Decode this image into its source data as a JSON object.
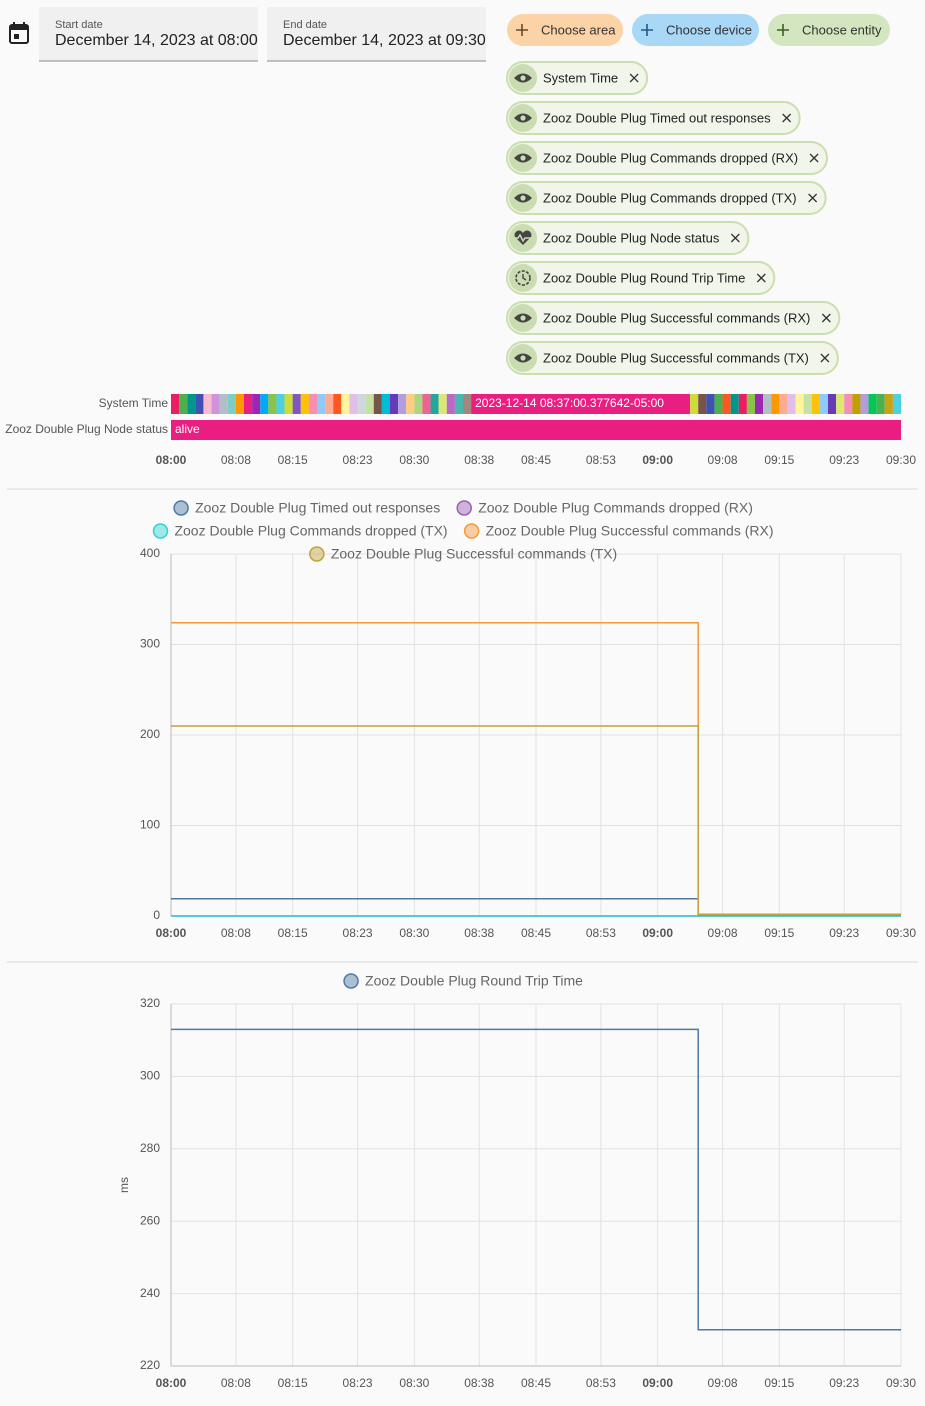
{
  "date_range": {
    "start": {
      "label": "Start date",
      "value": "December 14, 2023 at 08:00"
    },
    "end": {
      "label": "End date",
      "value": "December 14, 2023 at 09:30"
    }
  },
  "target_buttons": [
    "Choose area",
    "Choose device",
    "Choose entity"
  ],
  "entities": [
    "System Time",
    "Zooz Double Plug Timed out responses",
    "Zooz Double Plug Commands dropped (RX)",
    "Zooz Double Plug Commands dropped (TX)",
    "Zooz Double Plug Node status",
    "Zooz Double Plug Round Trip Time",
    "Zooz Double Plug Successful commands (RX)",
    "Zooz Double Plug Successful commands (TX)"
  ],
  "timeline": {
    "xlim": [
      "08:00",
      "09:30"
    ],
    "xticks": [
      "08:00",
      "08:08",
      "08:15",
      "08:23",
      "08:30",
      "08:38",
      "08:45",
      "08:53",
      "09:00",
      "09:08",
      "09:15",
      "09:23",
      "09:30"
    ],
    "rows": [
      {
        "name": "System Time",
        "segments": [
          {
            "start": "08:00",
            "end": "08:37",
            "colors": [
              "#e91e63",
              "#4caf50",
              "#009688",
              "#3f51b5",
              "#f8bbd0",
              "#ce93d8",
              "#b0bec5",
              "#80cbc4",
              "#ff9800",
              "#e91e80",
              "#9c27b0",
              "#03a9f4",
              "#8bc34a",
              "#4dd0e1",
              "#cddc39",
              "#7e57c2",
              "#ffc107",
              "#f48fb1",
              "#90caf9",
              "#ffab91",
              "#ff5722",
              "#fff59d",
              "#e1bee7",
              "#cfd8dc",
              "#c5e1a5",
              "#795548",
              "#00bcd4",
              "#673ab7",
              "#b39ddb",
              "#ffcc80",
              "#aed581",
              "#f06292",
              "#26a69a",
              "#dce775",
              "#ba68c8",
              "#4db6ac",
              "#a1887f"
            ]
          },
          {
            "start": "08:37",
            "end": "09:04",
            "color": "#e91e80",
            "label": "2023-12-14 08:37:00.377642-05:00"
          },
          {
            "start": "09:04",
            "end": "09:30",
            "colors": [
              "#cddc39",
              "#795548",
              "#3f51b5",
              "#4caf50",
              "#ff5722",
              "#009688",
              "#e91e63",
              "#8bc34a",
              "#9c27b0",
              "#b0bec5",
              "#ff9800",
              "#ffab91",
              "#e1bee7",
              "#fff59d",
              "#c5e1a5",
              "#ffc107",
              "#90caf9",
              "#673ab7",
              "#dce775",
              "#f48fb1",
              "#c0a000",
              "#b39ddb",
              "#00c853",
              "#4caf50",
              "#c8a415",
              "#4dd0e1"
            ]
          }
        ]
      },
      {
        "name": "Zooz Double Plug Node status",
        "segments": [
          {
            "start": "08:00",
            "end": "09:30",
            "color": "#e91e80",
            "label": "alive"
          }
        ]
      }
    ]
  },
  "chart_data": [
    {
      "type": "line",
      "step": true,
      "grid": true,
      "legend": "top",
      "xlim": [
        "08:00",
        "09:30"
      ],
      "xticks": [
        "08:00",
        "08:08",
        "08:15",
        "08:23",
        "08:30",
        "08:38",
        "08:45",
        "08:53",
        "09:00",
        "09:08",
        "09:15",
        "09:23",
        "09:30"
      ],
      "ylim": [
        0,
        400
      ],
      "yticks": [
        0,
        100,
        200,
        300,
        400
      ],
      "series": [
        {
          "name": "Zooz Double Plug Timed out responses",
          "color": "#4e79a7",
          "x": [
            "08:00",
            "09:05",
            "09:30"
          ],
          "values": [
            19,
            1,
            1
          ]
        },
        {
          "name": "Zooz Double Plug Commands dropped (RX)",
          "color": "#9a5fb4",
          "x": [
            "08:00",
            "09:05",
            "09:30"
          ],
          "values": [
            0,
            0,
            0
          ]
        },
        {
          "name": "Zooz Double Plug Commands dropped (TX)",
          "color": "#2fd3d3",
          "x": [
            "08:00",
            "09:05",
            "09:30"
          ],
          "values": [
            0,
            0,
            0
          ]
        },
        {
          "name": "Zooz Double Plug Successful commands (RX)",
          "color": "#f39a3c",
          "x": [
            "08:00",
            "09:05",
            "09:30"
          ],
          "values": [
            324,
            2,
            2
          ]
        },
        {
          "name": "Zooz Double Plug Successful commands (TX)",
          "color": "#c2a23a",
          "x": [
            "08:00",
            "09:05",
            "09:30"
          ],
          "values": [
            210,
            2,
            2
          ]
        }
      ]
    },
    {
      "type": "line",
      "step": true,
      "grid": true,
      "legend": "top",
      "ylabel": "ms",
      "xlim": [
        "08:00",
        "09:30"
      ],
      "xticks": [
        "08:00",
        "08:08",
        "08:15",
        "08:23",
        "08:30",
        "08:38",
        "08:45",
        "08:53",
        "09:00",
        "09:08",
        "09:15",
        "09:23",
        "09:30"
      ],
      "ylim": [
        220,
        320
      ],
      "yticks": [
        220,
        240,
        260,
        280,
        300,
        320
      ],
      "series": [
        {
          "name": "Zooz Double Plug Round Trip Time",
          "color": "#4e79a7",
          "x": [
            "08:00",
            "09:05",
            "09:30"
          ],
          "values": [
            313,
            230,
            230
          ]
        }
      ]
    }
  ]
}
